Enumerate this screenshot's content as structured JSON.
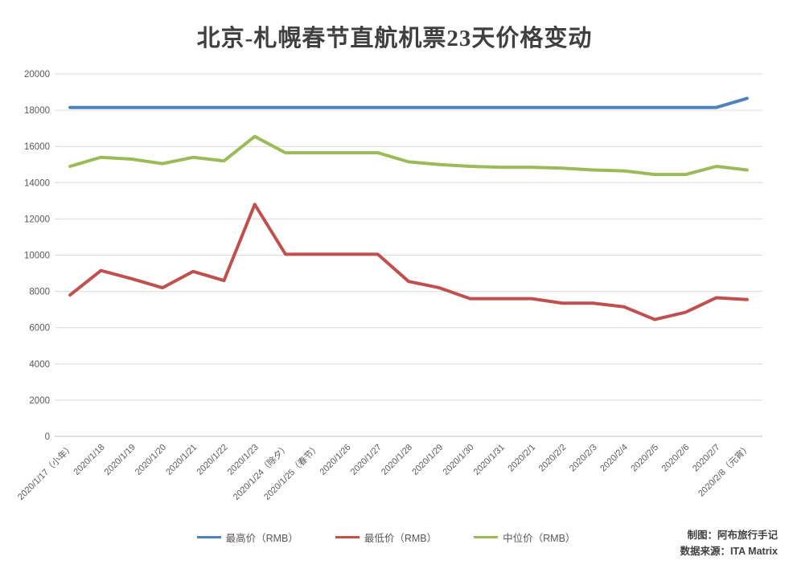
{
  "title": "北京-札幌春节直航机票23天价格变动",
  "credits": {
    "line1": "制图：阿布旅行手记",
    "line2": "数据来源：ITA Matrix"
  },
  "colors": {
    "max_series": "#4f81bd",
    "min_series": "#c0504d",
    "median_series": "#9bbb59",
    "gridline": "#d9d9d9",
    "axis_line": "#bfbfbf",
    "axis_text": "#595959"
  },
  "chart_data": {
    "type": "line",
    "title": "北京-札幌春节直航机票23天价格变动",
    "xlabel": "",
    "ylabel": "",
    "ylim": [
      0,
      20000
    ],
    "ytick_interval": 2000,
    "grid": "horizontal",
    "legend_position": "bottom",
    "categories": [
      "2020/1/17（小年）",
      "2020/1/18",
      "2020/1/19",
      "2020/1/20",
      "2020/1/21",
      "2020/1/22",
      "2020/1/23",
      "2020/1/24（除夕）",
      "2020/1/25（春节）",
      "2020/1/26",
      "2020/1/27",
      "2020/1/28",
      "2020/1/29",
      "2020/1/30",
      "2020/1/31",
      "2020/2/1",
      "2020/2/2",
      "2020/2/3",
      "2020/2/4",
      "2020/2/5",
      "2020/2/6",
      "2020/2/7",
      "2020/2/8（元宵）"
    ],
    "series": [
      {
        "name": "最高价（RMB）",
        "color": "#4f81bd",
        "values": [
          18150,
          18150,
          18150,
          18150,
          18150,
          18150,
          18150,
          18150,
          18150,
          18150,
          18150,
          18150,
          18150,
          18150,
          18150,
          18150,
          18150,
          18150,
          18150,
          18150,
          18150,
          18150,
          18650
        ]
      },
      {
        "name": "最低价（RMB）",
        "color": "#c0504d",
        "values": [
          7800,
          9150,
          8700,
          8200,
          9100,
          8600,
          12800,
          10050,
          10050,
          10050,
          10050,
          8550,
          8200,
          7600,
          7600,
          7600,
          7350,
          7350,
          7150,
          6450,
          6850,
          7650,
          7550
        ]
      },
      {
        "name": "中位价（RMB）",
        "color": "#9bbb59",
        "values": [
          14900,
          15400,
          15300,
          15050,
          15400,
          15200,
          16550,
          15650,
          15650,
          15650,
          15650,
          15150,
          15000,
          14900,
          14850,
          14850,
          14800,
          14700,
          14650,
          14450,
          14450,
          14900,
          14700
        ]
      }
    ]
  }
}
